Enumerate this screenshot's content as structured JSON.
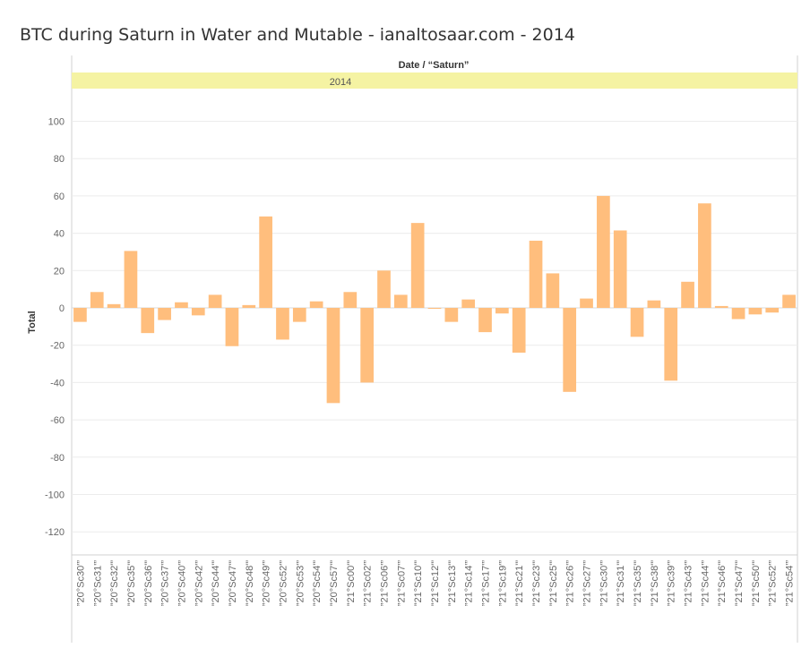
{
  "title": "BTC during Saturn in Water and Mutable - ianaltosaar.com - 2014",
  "column_header": "Date / “Saturn”",
  "year_label": "2014",
  "colors": {
    "bar": "#ffbe7d",
    "year_band": "#f5f3a3",
    "grid": "#ececec",
    "axis_text": "#666666",
    "title": "#333333"
  },
  "chart_data": {
    "type": "bar",
    "title": "BTC during Saturn in Water and Mutable - ianaltosaar.com - 2014",
    "xlabel": "Date / “Saturn”",
    "ylabel": "Total",
    "ylim": [
      -135,
      112
    ],
    "yticks": [
      100,
      80,
      60,
      40,
      20,
      0,
      -20,
      -40,
      -60,
      -80,
      -100,
      -120
    ],
    "grid": true,
    "categories": [
      "”20°Sc30'”",
      "”20°Sc31'”",
      "”20°Sc32'”",
      "”20°Sc35'”",
      "”20°Sc36'”",
      "”20°Sc37'”",
      "”20°Sc40'”",
      "”20°Sc42'”",
      "”20°Sc44'”",
      "”20°Sc47'”",
      "”20°Sc48'”",
      "”20°Sc49'”",
      "”20°Sc52'”",
      "”20°Sc53'”",
      "”20°Sc54'”",
      "”20°Sc57'”",
      "”21°Sc00'”",
      "”21°Sc02'”",
      "”21°Sc06'”",
      "”21°Sc07'”",
      "”21°Sc10'”",
      "”21°Sc12'”",
      "”21°Sc13'”",
      "”21°Sc14'”",
      "”21°Sc17'”",
      "”21°Sc19'”",
      "”21°Sc21'”",
      "”21°Sc23'”",
      "”21°Sc25'”",
      "”21°Sc26'”",
      "”21°Sc27'”",
      "”21°Sc30'”",
      "”21°Sc31'”",
      "”21°Sc35'”",
      "”21°Sc38'”",
      "”21°Sc39'”",
      "”21°Sc43'”",
      "”21°Sc44'”",
      "”21°Sc46'”",
      "”21°Sc47'”",
      "”21°Sc50'”",
      "”21°Sc52'”",
      "”21°Sc54'”"
    ],
    "values": [
      -7.5,
      8.5,
      2,
      30.5,
      -13.5,
      -6.5,
      3,
      -4,
      7,
      -20.5,
      1.5,
      49,
      -17,
      -7.5,
      3.5,
      -51,
      8.5,
      -40,
      20,
      7,
      45.5,
      -0.5,
      -7.5,
      4.5,
      -13,
      -3,
      -24,
      36,
      18.5,
      -45,
      5,
      60,
      41.5,
      -15.5,
      4,
      -39,
      14,
      56,
      1,
      -6,
      -3.5,
      -2.5,
      7
    ]
  }
}
